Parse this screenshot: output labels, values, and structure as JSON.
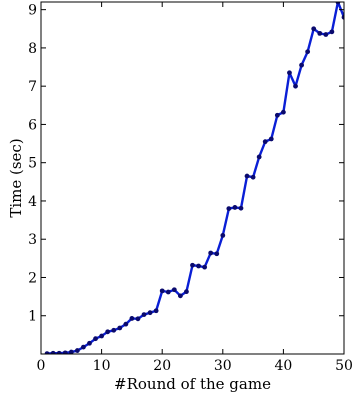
{
  "chart_data": {
    "type": "line",
    "title": "",
    "xlabel": "#Round of the game",
    "ylabel": "Time (sec)",
    "xlim": [
      0,
      50
    ],
    "ylim": [
      0,
      9.2
    ],
    "grid": false,
    "x_ticks": [
      0,
      10,
      20,
      30,
      40,
      50
    ],
    "y_ticks": [
      1,
      2,
      3,
      4,
      5,
      6,
      7,
      8,
      9
    ],
    "colors": {
      "line": "#0a1fd6",
      "marker": "#0a0a6e"
    },
    "series": [
      {
        "x": [
          1,
          2,
          3,
          4,
          5,
          6,
          7,
          8,
          9,
          10,
          11,
          12,
          13,
          14,
          15,
          16,
          17,
          18,
          19,
          20,
          21,
          22,
          23,
          24,
          25,
          26,
          27,
          28,
          29,
          30,
          31,
          32,
          33,
          34,
          35,
          36,
          37,
          38,
          39,
          40,
          41,
          42,
          43,
          44,
          45,
          46,
          47,
          48,
          49,
          50
        ],
        "y": [
          0.01,
          0.02,
          0.02,
          0.03,
          0.05,
          0.09,
          0.18,
          0.28,
          0.4,
          0.47,
          0.58,
          0.62,
          0.68,
          0.78,
          0.93,
          0.92,
          1.03,
          1.08,
          1.13,
          1.65,
          1.62,
          1.68,
          1.52,
          1.63,
          2.32,
          2.3,
          2.27,
          2.64,
          2.62,
          3.1,
          3.8,
          3.83,
          3.81,
          4.65,
          4.62,
          5.15,
          5.55,
          5.62,
          6.24,
          6.32,
          7.35,
          7.0,
          7.55,
          7.9,
          8.5,
          8.38,
          8.35,
          8.42,
          9.2,
          8.8
        ]
      }
    ]
  }
}
